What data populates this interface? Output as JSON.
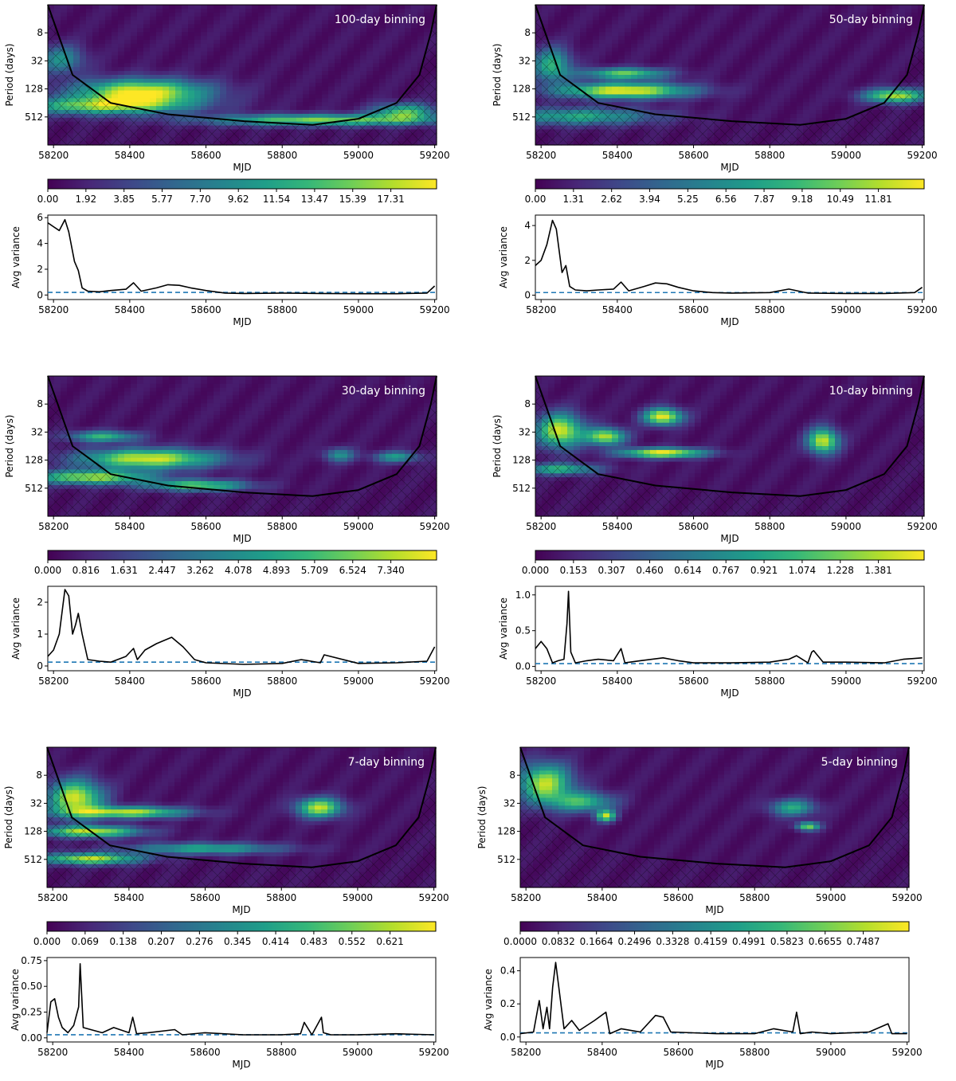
{
  "figure": {
    "period_label": "Period (days)",
    "time_label": "MJD",
    "variance_label": "Avg variance",
    "period_ticks": [
      "8",
      "32",
      "128",
      "512"
    ],
    "mjd_ticks": [
      "58200",
      "58400",
      "58600",
      "58800",
      "59000",
      "59200"
    ]
  },
  "chart_data": [
    {
      "type": "heatmap",
      "title": "100-day binning",
      "xlabel": "MJD",
      "ylabel": "Period (days)",
      "xlim": [
        58185,
        59205
      ],
      "y_log2": true,
      "ylim": [
        2,
        2048
      ],
      "colormap": "viridis",
      "colorbar_ticks": [
        "0.00",
        "1.92",
        "3.85",
        "5.77",
        "7.70",
        "9.62",
        "11.54",
        "13.47",
        "15.39",
        "17.31"
      ],
      "power_peaks": [
        {
          "mjd": 58430,
          "period": 150,
          "power": 0.95,
          "spread_mjd": 170,
          "spread_log2": 0.9
        },
        {
          "mjd": 58330,
          "period": 300,
          "power": 0.7,
          "spread_mjd": 220,
          "spread_log2": 0.6
        },
        {
          "mjd": 58900,
          "period": 600,
          "power": 0.75,
          "spread_mjd": 300,
          "spread_log2": 0.4
        },
        {
          "mjd": 59120,
          "period": 400,
          "power": 0.65,
          "spread_mjd": 80,
          "spread_log2": 0.6
        },
        {
          "mjd": 58220,
          "period": 30,
          "power": 0.45,
          "spread_mjd": 60,
          "spread_log2": 1.0
        }
      ],
      "cone_mjd": [
        58185,
        58250,
        58350,
        58500,
        58700,
        58880,
        59000,
        59100,
        59160,
        59190,
        59205
      ],
      "cone_period": [
        2,
        64,
        256,
        450,
        630,
        760,
        560,
        256,
        64,
        8,
        2
      ],
      "lower": {
        "type": "line",
        "xlabel": "MJD",
        "ylabel": "Avg variance",
        "ylim": [
          -0.35,
          6.2
        ],
        "yticks": [
          "0",
          "2",
          "4",
          "6"
        ],
        "ytick_values": [
          0,
          2,
          4,
          6
        ],
        "threshold": 0.2,
        "x": [
          58185,
          58200,
          58215,
          58230,
          58240,
          58255,
          58265,
          58275,
          58290,
          58320,
          58350,
          58390,
          58410,
          58430,
          58470,
          58500,
          58530,
          58560,
          58600,
          58650,
          58700,
          58800,
          58900,
          59000,
          59100,
          59180,
          59200
        ],
        "y": [
          5.6,
          5.3,
          5.0,
          5.85,
          4.9,
          2.6,
          1.9,
          0.55,
          0.3,
          0.25,
          0.35,
          0.45,
          0.95,
          0.3,
          0.55,
          0.8,
          0.75,
          0.55,
          0.35,
          0.15,
          0.12,
          0.15,
          0.12,
          0.1,
          0.1,
          0.15,
          0.7
        ]
      }
    },
    {
      "type": "heatmap",
      "title": "50-day binning",
      "xlabel": "MJD",
      "ylabel": "Period (days)",
      "xlim": [
        58185,
        59205
      ],
      "y_log2": true,
      "ylim": [
        2,
        2048
      ],
      "colormap": "viridis",
      "colorbar_ticks": [
        "0.00",
        "1.31",
        "2.62",
        "3.94",
        "5.25",
        "6.56",
        "7.87",
        "9.18",
        "10.49",
        "11.81"
      ],
      "power_peaks": [
        {
          "mjd": 58420,
          "period": 140,
          "power": 0.95,
          "spread_mjd": 170,
          "spread_log2": 0.55
        },
        {
          "mjd": 58420,
          "period": 60,
          "power": 0.7,
          "spread_mjd": 110,
          "spread_log2": 0.4
        },
        {
          "mjd": 58230,
          "period": 40,
          "power": 0.6,
          "spread_mjd": 50,
          "spread_log2": 1.2
        },
        {
          "mjd": 59130,
          "period": 180,
          "power": 0.85,
          "spread_mjd": 80,
          "spread_log2": 0.5
        },
        {
          "mjd": 58300,
          "period": 500,
          "power": 0.55,
          "spread_mjd": 200,
          "spread_log2": 0.6
        }
      ],
      "cone_mjd": [
        58185,
        58250,
        58350,
        58500,
        58700,
        58880,
        59000,
        59100,
        59160,
        59190,
        59205
      ],
      "cone_period": [
        2,
        64,
        256,
        450,
        630,
        760,
        560,
        256,
        64,
        8,
        2
      ],
      "lower": {
        "type": "line",
        "xlabel": "MJD",
        "ylabel": "Avg variance",
        "ylim": [
          -0.25,
          4.6
        ],
        "yticks": [
          "0",
          "2",
          "4"
        ],
        "ytick_values": [
          0,
          2,
          4
        ],
        "threshold": 0.15,
        "x": [
          58185,
          58200,
          58215,
          58230,
          58240,
          58255,
          58265,
          58275,
          58290,
          58320,
          58350,
          58390,
          58410,
          58430,
          58470,
          58500,
          58530,
          58560,
          58600,
          58650,
          58700,
          58800,
          58850,
          58900,
          59000,
          59100,
          59180,
          59200
        ],
        "y": [
          1.7,
          2.0,
          2.9,
          4.3,
          3.8,
          1.3,
          1.7,
          0.5,
          0.3,
          0.25,
          0.3,
          0.35,
          0.75,
          0.25,
          0.5,
          0.7,
          0.65,
          0.45,
          0.25,
          0.15,
          0.12,
          0.15,
          0.35,
          0.12,
          0.1,
          0.1,
          0.15,
          0.45
        ]
      }
    },
    {
      "type": "heatmap",
      "title": "30-day binning",
      "xlabel": "MJD",
      "ylabel": "Period (days)",
      "xlim": [
        58185,
        59205
      ],
      "y_log2": true,
      "ylim": [
        2,
        2048
      ],
      "colormap": "viridis",
      "colorbar_ticks": [
        "0.000",
        "0.816",
        "1.631",
        "2.447",
        "3.262",
        "4.078",
        "4.893",
        "5.709",
        "6.524",
        "7.340"
      ],
      "power_peaks": [
        {
          "mjd": 58450,
          "period": 120,
          "power": 0.9,
          "spread_mjd": 180,
          "spread_log2": 0.7
        },
        {
          "mjd": 58330,
          "period": 40,
          "power": 0.6,
          "spread_mjd": 90,
          "spread_log2": 0.4
        },
        {
          "mjd": 58300,
          "period": 300,
          "power": 0.8,
          "spread_mjd": 160,
          "spread_log2": 0.5
        },
        {
          "mjd": 58580,
          "period": 450,
          "power": 0.7,
          "spread_mjd": 130,
          "spread_log2": 0.4
        },
        {
          "mjd": 58950,
          "period": 100,
          "power": 0.45,
          "spread_mjd": 40,
          "spread_log2": 0.5
        },
        {
          "mjd": 59100,
          "period": 110,
          "power": 0.5,
          "spread_mjd": 60,
          "spread_log2": 0.4
        }
      ],
      "cone_mjd": [
        58185,
        58250,
        58350,
        58500,
        58700,
        58880,
        59000,
        59100,
        59160,
        59190,
        59205
      ],
      "cone_period": [
        2,
        64,
        256,
        450,
        630,
        760,
        560,
        256,
        64,
        8,
        2
      ],
      "lower": {
        "type": "line",
        "xlabel": "MJD",
        "ylabel": "Avg variance",
        "ylim": [
          -0.15,
          2.5
        ],
        "yticks": [
          "0",
          "1",
          "2"
        ],
        "ytick_values": [
          0,
          1,
          2
        ],
        "threshold": 0.12,
        "x": [
          58185,
          58200,
          58215,
          58230,
          58240,
          58250,
          58258,
          58265,
          58275,
          58290,
          58320,
          58350,
          58390,
          58410,
          58420,
          58440,
          58470,
          58490,
          58510,
          58540,
          58570,
          58600,
          58700,
          58800,
          58850,
          58900,
          58910,
          59000,
          59100,
          59180,
          59200
        ],
        "y": [
          0.3,
          0.5,
          1.0,
          2.4,
          2.2,
          1.0,
          1.3,
          1.65,
          1.0,
          0.2,
          0.15,
          0.12,
          0.3,
          0.55,
          0.2,
          0.5,
          0.7,
          0.8,
          0.9,
          0.6,
          0.2,
          0.1,
          0.05,
          0.08,
          0.2,
          0.1,
          0.35,
          0.08,
          0.1,
          0.15,
          0.6
        ]
      }
    },
    {
      "type": "heatmap",
      "title": "10-day binning",
      "xlabel": "MJD",
      "ylabel": "Period (days)",
      "xlim": [
        58185,
        59205
      ],
      "y_log2": true,
      "ylim": [
        2,
        2048
      ],
      "colormap": "viridis",
      "colorbar_ticks": [
        "0.000",
        "0.153",
        "0.307",
        "0.460",
        "0.614",
        "0.767",
        "0.921",
        "1.074",
        "1.228",
        "1.381"
      ],
      "power_peaks": [
        {
          "mjd": 58250,
          "period": 30,
          "power": 0.9,
          "spread_mjd": 60,
          "spread_log2": 1.2
        },
        {
          "mjd": 58370,
          "period": 40,
          "power": 0.85,
          "spread_mjd": 50,
          "spread_log2": 0.6
        },
        {
          "mjd": 58520,
          "period": 15,
          "power": 0.95,
          "spread_mjd": 50,
          "spread_log2": 0.6
        },
        {
          "mjd": 58520,
          "period": 90,
          "power": 0.95,
          "spread_mjd": 110,
          "spread_log2": 0.35
        },
        {
          "mjd": 58940,
          "period": 50,
          "power": 0.9,
          "spread_mjd": 40,
          "spread_log2": 0.9
        },
        {
          "mjd": 58250,
          "period": 200,
          "power": 0.6,
          "spread_mjd": 100,
          "spread_log2": 0.4
        }
      ],
      "cone_mjd": [
        58185,
        58250,
        58350,
        58500,
        58700,
        58880,
        59000,
        59100,
        59160,
        59190,
        59205
      ],
      "cone_period": [
        2,
        64,
        256,
        450,
        630,
        760,
        560,
        256,
        64,
        8,
        2
      ],
      "lower": {
        "type": "line",
        "xlabel": "MJD",
        "ylabel": "Avg variance",
        "ylim": [
          -0.06,
          1.12
        ],
        "yticks": [
          "0.0",
          "0.5",
          "1.0"
        ],
        "ytick_values": [
          0,
          0.5,
          1.0
        ],
        "threshold": 0.04,
        "x": [
          58185,
          58200,
          58215,
          58230,
          58245,
          58260,
          58268,
          58272,
          58278,
          58290,
          58320,
          58350,
          58390,
          58410,
          58420,
          58460,
          58520,
          58560,
          58600,
          58700,
          58800,
          58850,
          58870,
          58900,
          58910,
          58915,
          58940,
          59000,
          59100,
          59150,
          59200
        ],
        "y": [
          0.25,
          0.35,
          0.25,
          0.05,
          0.08,
          0.1,
          0.6,
          1.05,
          0.2,
          0.05,
          0.08,
          0.1,
          0.08,
          0.25,
          0.05,
          0.08,
          0.12,
          0.08,
          0.05,
          0.05,
          0.06,
          0.1,
          0.15,
          0.05,
          0.2,
          0.22,
          0.06,
          0.06,
          0.05,
          0.1,
          0.12
        ]
      }
    },
    {
      "type": "heatmap",
      "title": "7-day binning",
      "xlabel": "MJD",
      "ylabel": "Period (days)",
      "xlim": [
        58185,
        59205
      ],
      "y_log2": true,
      "ylim": [
        2,
        2048
      ],
      "colormap": "viridis",
      "colorbar_ticks": [
        "0.000",
        "0.069",
        "0.138",
        "0.207",
        "0.276",
        "0.345",
        "0.414",
        "0.483",
        "0.552",
        "0.621"
      ],
      "power_peaks": [
        {
          "mjd": 58260,
          "period": 25,
          "power": 0.9,
          "spread_mjd": 70,
          "spread_log2": 1.3
        },
        {
          "mjd": 58400,
          "period": 50,
          "power": 0.85,
          "spread_mjd": 150,
          "spread_log2": 0.4
        },
        {
          "mjd": 58300,
          "period": 130,
          "power": 0.85,
          "spread_mjd": 130,
          "spread_log2": 0.4
        },
        {
          "mjd": 58300,
          "period": 500,
          "power": 0.85,
          "spread_mjd": 130,
          "spread_log2": 0.4
        },
        {
          "mjd": 58900,
          "period": 40,
          "power": 0.85,
          "spread_mjd": 60,
          "spread_log2": 0.7
        },
        {
          "mjd": 58600,
          "period": 300,
          "power": 0.55,
          "spread_mjd": 200,
          "spread_log2": 0.4
        }
      ],
      "cone_mjd": [
        58185,
        58250,
        58350,
        58500,
        58700,
        58880,
        59000,
        59100,
        59160,
        59190,
        59205
      ],
      "cone_period": [
        2,
        64,
        256,
        450,
        630,
        760,
        560,
        256,
        64,
        8,
        2
      ],
      "lower": {
        "type": "line",
        "xlabel": "MJD",
        "ylabel": "Avg variance",
        "ylim": [
          -0.04,
          0.78
        ],
        "yticks": [
          "0.00",
          "0.25",
          "0.50",
          "0.75"
        ],
        "ytick_values": [
          0,
          0.25,
          0.5,
          0.75
        ],
        "threshold": 0.03,
        "x": [
          58185,
          58195,
          58205,
          58215,
          58225,
          58240,
          58255,
          58268,
          58272,
          58280,
          58300,
          58330,
          58360,
          58400,
          58410,
          58420,
          58450,
          58520,
          58540,
          58600,
          58700,
          58800,
          58850,
          58860,
          58880,
          58905,
          58910,
          58930,
          59000,
          59100,
          59200
        ],
        "y": [
          0.05,
          0.35,
          0.38,
          0.2,
          0.1,
          0.05,
          0.12,
          0.3,
          0.72,
          0.1,
          0.08,
          0.05,
          0.1,
          0.05,
          0.2,
          0.04,
          0.05,
          0.08,
          0.03,
          0.05,
          0.03,
          0.03,
          0.04,
          0.15,
          0.03,
          0.2,
          0.05,
          0.03,
          0.03,
          0.04,
          0.03
        ]
      }
    },
    {
      "type": "heatmap",
      "title": "5-day binning",
      "xlabel": "MJD",
      "ylabel": "Period (days)",
      "xlim": [
        58185,
        59205
      ],
      "y_log2": true,
      "ylim": [
        2,
        2048
      ],
      "colormap": "viridis",
      "colorbar_ticks": [
        "0.0000",
        "0.0832",
        "0.1664",
        "0.2496",
        "0.3328",
        "0.4159",
        "0.4991",
        "0.5823",
        "0.6655",
        "0.7487"
      ],
      "power_peaks": [
        {
          "mjd": 58250,
          "period": 12,
          "power": 0.85,
          "spread_mjd": 70,
          "spread_log2": 1.4
        },
        {
          "mjd": 58350,
          "period": 30,
          "power": 0.6,
          "spread_mjd": 80,
          "spread_log2": 0.7
        },
        {
          "mjd": 58410,
          "period": 60,
          "power": 0.8,
          "spread_mjd": 25,
          "spread_log2": 0.4
        },
        {
          "mjd": 58900,
          "period": 40,
          "power": 0.55,
          "spread_mjd": 60,
          "spread_log2": 0.6
        },
        {
          "mjd": 58940,
          "period": 100,
          "power": 0.75,
          "spread_mjd": 30,
          "spread_log2": 0.3
        }
      ],
      "cone_mjd": [
        58185,
        58250,
        58350,
        58500,
        58700,
        58880,
        59000,
        59100,
        59160,
        59190,
        59205
      ],
      "cone_period": [
        2,
        64,
        256,
        450,
        630,
        760,
        560,
        256,
        64,
        8,
        2
      ],
      "lower": {
        "type": "line",
        "xlabel": "MJD",
        "ylabel": "Avg variance",
        "ylim": [
          -0.03,
          0.48
        ],
        "yticks": [
          "0.0",
          "0.2",
          "0.4"
        ],
        "ytick_values": [
          0,
          0.2,
          0.4
        ],
        "threshold": 0.025,
        "x": [
          58185,
          58220,
          58235,
          58245,
          58255,
          58262,
          58270,
          58278,
          58300,
          58320,
          58340,
          58380,
          58410,
          58420,
          58450,
          58500,
          58540,
          58560,
          58580,
          58700,
          58800,
          58850,
          58900,
          58910,
          58920,
          58950,
          59000,
          59100,
          59150,
          59160,
          59200
        ],
        "y": [
          0.02,
          0.03,
          0.22,
          0.05,
          0.18,
          0.05,
          0.3,
          0.45,
          0.05,
          0.1,
          0.04,
          0.1,
          0.15,
          0.02,
          0.05,
          0.03,
          0.13,
          0.12,
          0.03,
          0.02,
          0.02,
          0.05,
          0.03,
          0.15,
          0.02,
          0.03,
          0.02,
          0.03,
          0.08,
          0.02,
          0.02
        ]
      }
    }
  ]
}
